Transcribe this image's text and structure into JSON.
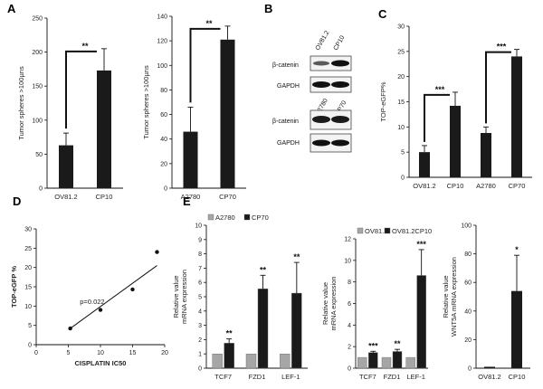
{
  "panels": {
    "A": "A",
    "B": "B",
    "C": "C",
    "D": "D",
    "E": "E"
  },
  "chart_data": [
    {
      "id": "A1",
      "type": "bar",
      "categories": [
        "OV81.2",
        "CP10"
      ],
      "values": [
        63,
        173
      ],
      "errors": [
        18,
        32
      ],
      "ylabel": "Tumor spheres >100µns",
      "ylim": [
        0,
        250
      ],
      "yticks": [
        0,
        50,
        100,
        150,
        200,
        250
      ],
      "colors": [
        "#1a1a1a",
        "#1a1a1a"
      ],
      "significance": "**"
    },
    {
      "id": "A2",
      "type": "bar",
      "categories": [
        "A2780",
        "CP70"
      ],
      "values": [
        46,
        121
      ],
      "errors": [
        20,
        11
      ],
      "ylabel": "Tumor spheres >100µns",
      "ylim": [
        0,
        140
      ],
      "yticks": [
        0,
        20,
        40,
        60,
        80,
        100,
        120,
        140
      ],
      "colors": [
        "#1a1a1a",
        "#1a1a1a"
      ],
      "significance": "**"
    },
    {
      "id": "C",
      "type": "bar",
      "categories": [
        "OV81.2",
        "CP10",
        "A2780",
        "CP70"
      ],
      "values": [
        5,
        14.2,
        8.8,
        24
      ],
      "errors": [
        1.3,
        2.7,
        1.2,
        1.4
      ],
      "ylabel": "TOP-eGFP%",
      "ylim": [
        0,
        30
      ],
      "yticks": [
        0,
        5,
        10,
        15,
        20,
        25,
        30
      ],
      "colors": [
        "#1a1a1a",
        "#1a1a1a",
        "#1a1a1a",
        "#1a1a1a"
      ],
      "significance": [
        "***",
        "***"
      ]
    },
    {
      "id": "D",
      "type": "scatter",
      "x": [
        5.3,
        10,
        15,
        18.8
      ],
      "y": [
        4.2,
        9,
        14.3,
        24
      ],
      "xlabel": "CISPLATIN IC50",
      "ylabel": "TOP-eGFP %",
      "xlim": [
        0,
        20
      ],
      "ylim": [
        0,
        30
      ],
      "xticks": [
        0,
        5,
        10,
        15,
        20
      ],
      "yticks": [
        0,
        5,
        10,
        15,
        20,
        25,
        30
      ],
      "annotation": "p=0.022",
      "trendline": [
        [
          5.3,
          4.2
        ],
        [
          18.8,
          20.5
        ]
      ]
    },
    {
      "id": "E1",
      "type": "bar",
      "categories": [
        "TCF7",
        "FZD1",
        "LEF-1"
      ],
      "series": [
        {
          "name": "A2780",
          "values": [
            1,
            1,
            1
          ],
          "errors": [
            0,
            0,
            0
          ],
          "color": "#a6a6a6"
        },
        {
          "name": "CP70",
          "values": [
            1.75,
            5.55,
            5.25
          ],
          "errors": [
            0.3,
            0.95,
            2.15
          ],
          "color": "#1a1a1a"
        }
      ],
      "ylabel": "Relative value\nmRNA expression",
      "ylim": [
        0,
        10
      ],
      "yticks": [
        0,
        1,
        2,
        3,
        4,
        5,
        6,
        7,
        8,
        9,
        10
      ],
      "significance": [
        "**",
        "**",
        "**"
      ],
      "legend": "top"
    },
    {
      "id": "E2",
      "type": "bar",
      "categories": [
        "TCF7",
        "FZD1",
        "LEF-1"
      ],
      "series": [
        {
          "name": "OV81.2",
          "values": [
            1,
            1,
            1
          ],
          "errors": [
            0,
            0,
            0
          ],
          "color": "#a6a6a6"
        },
        {
          "name": "OV81.2CP10",
          "values": [
            1.45,
            1.55,
            8.6
          ],
          "errors": [
            0.12,
            0.2,
            2.4
          ],
          "color": "#1a1a1a"
        }
      ],
      "ylabel": "Relative value\nmRNA expression",
      "ylim": [
        0,
        12
      ],
      "yticks": [
        0,
        2,
        4,
        6,
        8,
        10,
        12
      ],
      "significance": [
        "***",
        "**",
        "***"
      ],
      "legend": "top"
    },
    {
      "id": "E3",
      "type": "bar",
      "categories": [
        "OV81.2",
        "CP10"
      ],
      "values": [
        1,
        54
      ],
      "errors": [
        0,
        25
      ],
      "ylabel": "Relative value\nWNT5A mRNA expression",
      "ylim": [
        0,
        100
      ],
      "yticks": [
        0,
        20,
        40,
        60,
        80,
        100
      ],
      "colors": [
        "#1a1a1a",
        "#1a1a1a"
      ],
      "significance": [
        "",
        "*"
      ]
    }
  ],
  "blot": {
    "top": {
      "lanes": [
        "OV81.2",
        "CP10"
      ],
      "rows": [
        "β-catenin",
        "GAPDH"
      ]
    },
    "bottom": {
      "lanes": [
        "A2780",
        "CP70"
      ],
      "rows": [
        "β-catenin",
        "GAPDH"
      ]
    }
  }
}
